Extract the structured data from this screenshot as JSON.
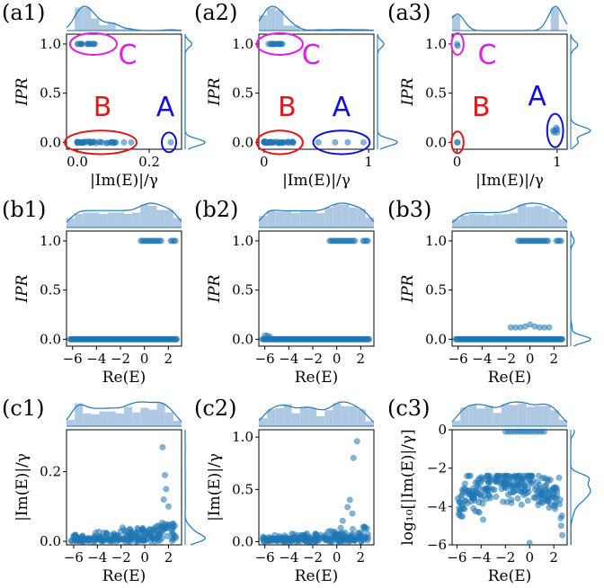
{
  "colors": {
    "points": "#1f77b4",
    "marginal_fill": "#9bbcdc",
    "cluster_A": "#1010d8",
    "cluster_B": "#e01818",
    "cluster_C": "#e020e0"
  },
  "chart_data": [
    {
      "type": "scatter",
      "panel_label": "(a1)",
      "xlabel": "|Im(E)|/γ",
      "ylabel": "IPR",
      "xlim": [
        -0.03,
        0.29
      ],
      "ylim": [
        -0.07,
        1.1
      ],
      "xticks": [
        0.0,
        0.2
      ],
      "xtick_labels": [
        "0.0",
        "0.2"
      ],
      "yticks": [
        0.0,
        0.5,
        1.0
      ],
      "ytick_labels": [
        "0.0",
        "0.5",
        "1.0"
      ],
      "marginal_top": true,
      "marginal_right": true,
      "points": {
        "cluster_low_x_range": [
          0.0,
          0.12
        ],
        "cluster_low_y": 0.0,
        "cluster_high_x_range": [
          0.0,
          0.05
        ],
        "cluster_high_y": 1.0,
        "outliers": [
          [
            0.13,
            0.0
          ],
          [
            0.15,
            0.0
          ],
          [
            0.26,
            0.0
          ]
        ]
      },
      "annotations": [
        {
          "text": "C",
          "color": "#e020e0",
          "ellipse_center": [
            0.045,
            1.0
          ],
          "ellipse_radii": [
            0.065,
            0.11
          ],
          "label_at": [
            0.14,
            0.8
          ]
        },
        {
          "text": "B",
          "color": "#e01818",
          "ellipse_center": [
            0.065,
            0.0
          ],
          "ellipse_radii": [
            0.1,
            0.12
          ],
          "label_at": [
            0.07,
            0.27
          ]
        },
        {
          "text": "A",
          "color": "#1010d8",
          "ellipse_center": [
            0.255,
            0.0
          ],
          "ellipse_radii": [
            0.02,
            0.1
          ],
          "label_at": [
            0.245,
            0.27
          ]
        }
      ]
    },
    {
      "type": "scatter",
      "panel_label": "(a2)",
      "xlabel": "|Im(E)|/γ",
      "ylabel": "IPR",
      "xlim": [
        -0.05,
        1.05
      ],
      "ylim": [
        -0.07,
        1.1
      ],
      "xticks": [
        0,
        1
      ],
      "xtick_labels": [
        "0",
        "1"
      ],
      "yticks": [
        0.0,
        0.5,
        1.0
      ],
      "ytick_labels": [
        "0.0",
        "0.5",
        "1.0"
      ],
      "marginal_top": true,
      "marginal_right": true,
      "points": {
        "cluster_low_x_range": [
          0.0,
          0.28
        ],
        "cluster_low_y": 0.0,
        "cluster_high_x_range": [
          0.0,
          0.18
        ],
        "cluster_high_y": 1.0,
        "outliers": [
          [
            0.52,
            0.0
          ],
          [
            0.68,
            0.0
          ],
          [
            0.8,
            0.0
          ],
          [
            0.95,
            0.0
          ]
        ]
      },
      "annotations": [
        {
          "text": "C",
          "color": "#e020e0",
          "ellipse_center": [
            0.15,
            1.0
          ],
          "ellipse_radii": [
            0.22,
            0.11
          ],
          "label_at": [
            0.45,
            0.8
          ]
        },
        {
          "text": "B",
          "color": "#e01818",
          "ellipse_center": [
            0.15,
            0.0
          ],
          "ellipse_radii": [
            0.22,
            0.12
          ],
          "label_at": [
            0.22,
            0.27
          ]
        },
        {
          "text": "A",
          "color": "#1010d8",
          "ellipse_center": [
            0.74,
            0.0
          ],
          "ellipse_radii": [
            0.27,
            0.12
          ],
          "label_at": [
            0.74,
            0.27
          ]
        }
      ]
    },
    {
      "type": "scatter",
      "panel_label": "(a3)",
      "xlabel": "|Im(E)|/γ",
      "ylabel": "IPR",
      "xlim": [
        -0.05,
        1.1
      ],
      "ylim": [
        -0.07,
        1.1
      ],
      "xticks": [
        0,
        1
      ],
      "xtick_labels": [
        "0",
        "1"
      ],
      "yticks": [
        0.0,
        0.5,
        1.0
      ],
      "ytick_labels": [
        "0.0",
        "0.5",
        "1.0"
      ],
      "marginal_top": true,
      "marginal_right": true,
      "points": {
        "cluster_A": [
          [
            0.97,
            0.1
          ],
          [
            0.98,
            0.12
          ],
          [
            0.99,
            0.15
          ],
          [
            1.0,
            0.1
          ],
          [
            1.0,
            0.13
          ],
          [
            0.96,
            0.12
          ]
        ],
        "cluster_B": [
          [
            0.0,
            0.0
          ],
          [
            0.005,
            0.0
          ]
        ],
        "cluster_C": [
          [
            0.0,
            1.0
          ],
          [
            0.005,
            0.98
          ]
        ]
      },
      "annotations": [
        {
          "text": "C",
          "color": "#e020e0",
          "ellipse_center": [
            0.005,
            1.0
          ],
          "ellipse_radii": [
            0.06,
            0.11
          ],
          "label_at": [
            0.3,
            0.8
          ]
        },
        {
          "text": "B",
          "color": "#e01818",
          "ellipse_center": [
            0.005,
            0.0
          ],
          "ellipse_radii": [
            0.06,
            0.11
          ],
          "label_at": [
            0.24,
            0.27
          ]
        },
        {
          "text": "A",
          "color": "#1010d8",
          "ellipse_center": [
            0.98,
            0.12
          ],
          "ellipse_radii": [
            0.08,
            0.17
          ],
          "label_at": [
            0.8,
            0.38
          ]
        }
      ]
    },
    {
      "type": "scatter",
      "panel_label": "(b1)",
      "xlabel": "Re(E)",
      "ylabel": "IPR",
      "xlim": [
        -6.5,
        3.1
      ],
      "ylim": [
        -0.07,
        1.1
      ],
      "xticks": [
        -6,
        -4,
        -2,
        0,
        2
      ],
      "xtick_labels": [
        "−6",
        "−4",
        "−2",
        "0",
        "2"
      ],
      "yticks": [
        0.0,
        0.5,
        1.0
      ],
      "ytick_labels": [
        "0.0",
        "0.5",
        "1.0"
      ],
      "marginal_top": true,
      "marginal_right": false,
      "points": {
        "band_y0_x_range": [
          -6.2,
          2.7
        ],
        "band_y1_x_ranges": [
          [
            -0.3,
            1.4
          ],
          [
            2.2,
            2.6
          ]
        ]
      }
    },
    {
      "type": "scatter",
      "panel_label": "(b2)",
      "xlabel": "Re(E)",
      "ylabel": "IPR",
      "xlim": [
        -6.5,
        3.1
      ],
      "ylim": [
        -0.07,
        1.1
      ],
      "xticks": [
        -6,
        -4,
        -2,
        0,
        2
      ],
      "xtick_labels": [
        "−6",
        "−4",
        "−2",
        "0",
        "2"
      ],
      "yticks": [
        0.0,
        0.5,
        1.0
      ],
      "ytick_labels": [
        "0.0",
        "0.5",
        "1.0"
      ],
      "marginal_top": true,
      "marginal_right": false,
      "points": {
        "band_y0_x_range": [
          -6.2,
          2.7
        ],
        "band_y1_x_ranges": [
          [
            -0.6,
            1.5
          ],
          [
            2.2,
            2.6
          ]
        ],
        "extra": [
          [
            -6.0,
            0.04
          ],
          [
            -5.8,
            0.035
          ],
          [
            -5.6,
            0.03
          ]
        ]
      }
    },
    {
      "type": "scatter",
      "panel_label": "(b3)",
      "xlabel": "Re(E)",
      "ylabel": "IPR",
      "xlim": [
        -6.5,
        3.1
      ],
      "ylim": [
        -0.07,
        1.1
      ],
      "xticks": [
        -6,
        -4,
        -2,
        0,
        2
      ],
      "xtick_labels": [
        "−6",
        "−4",
        "−2",
        "0",
        "2"
      ],
      "yticks": [
        0.0,
        0.5,
        1.0
      ],
      "ytick_labels": [
        "0.0",
        "0.5",
        "1.0"
      ],
      "marginal_top": true,
      "marginal_right": true,
      "points": {
        "band_y0_x_range": [
          -6.2,
          2.7
        ],
        "band_y1_x_ranges": [
          [
            -1.0,
            1.5
          ],
          [
            2.2,
            2.6
          ]
        ],
        "mid": [
          [
            -1.6,
            0.12
          ],
          [
            -1.2,
            0.12
          ],
          [
            -0.8,
            0.12
          ],
          [
            -0.4,
            0.13
          ],
          [
            0.0,
            0.15
          ],
          [
            0.4,
            0.13
          ],
          [
            0.8,
            0.12
          ],
          [
            1.2,
            0.12
          ],
          [
            1.6,
            0.12
          ]
        ]
      }
    },
    {
      "type": "scatter",
      "panel_label": "(c1)",
      "xlabel": "Re(E)",
      "ylabel": "|Im(E)|/γ",
      "xlim": [
        -6.6,
        3.1
      ],
      "ylim": [
        -0.01,
        0.32
      ],
      "xticks": [
        -6,
        -4,
        -2,
        0,
        2
      ],
      "xtick_labels": [
        "−6",
        "−4",
        "−2",
        "0",
        "2"
      ],
      "yticks": [
        0.0,
        0.2
      ],
      "ytick_labels": [
        "0.0",
        "0.2"
      ],
      "marginal_top": true,
      "marginal_right": true,
      "points": {
        "cloud_x_range": [
          -6.2,
          2.7
        ],
        "cloud_y_peak": 0.05,
        "outliers": [
          [
            1.5,
            0.27
          ],
          [
            1.7,
            0.19
          ],
          [
            1.8,
            0.15
          ],
          [
            1.6,
            0.12
          ],
          [
            2.0,
            0.1
          ]
        ]
      }
    },
    {
      "type": "scatter",
      "panel_label": "(c2)",
      "xlabel": "Re(E)",
      "ylabel": "|Im(E)|/γ",
      "xlim": [
        -6.5,
        3.1
      ],
      "ylim": [
        -0.03,
        1.07
      ],
      "xticks": [
        -6,
        -4,
        -2,
        0,
        2
      ],
      "xtick_labels": [
        "−6",
        "−4",
        "−2",
        "0",
        "2"
      ],
      "yticks": [
        0.0,
        0.5,
        1.0
      ],
      "ytick_labels": [
        "0.0",
        "0.5",
        "1.0"
      ],
      "marginal_top": true,
      "marginal_right": false,
      "points": {
        "cloud_x_range": [
          -6.2,
          2.7
        ],
        "cloud_y_peak": 0.12,
        "outliers": [
          [
            1.7,
            0.96
          ],
          [
            1.4,
            0.8
          ],
          [
            1.1,
            0.4
          ],
          [
            0.9,
            0.33
          ],
          [
            1.3,
            0.27
          ],
          [
            0.5,
            0.2
          ]
        ]
      }
    },
    {
      "type": "scatter",
      "panel_label": "(c3)",
      "xlabel": "Re(E)",
      "ylabel": "log₁₀[|Im(E)|/γ]",
      "xlim": [
        -6.4,
        3.1
      ],
      "ylim": [
        -6.0,
        0.0
      ],
      "xticks": [
        -6,
        -4,
        -2,
        0,
        2
      ],
      "xtick_labels": [
        "−6",
        "−4",
        "−2",
        "0",
        "2"
      ],
      "yticks": [
        -6,
        -4,
        -2,
        0
      ],
      "ytick_labels": [
        "−6",
        "−4",
        "−2",
        "0"
      ],
      "marginal_top": true,
      "marginal_right": true,
      "points": {
        "arc_x_range": [
          -6.0,
          2.7
        ],
        "arc_center": -1.5,
        "arc_top": -2.8,
        "arc_spread": 0.5,
        "top_row_x_range": [
          -2.0,
          1.2
        ],
        "top_row_y": -0.1,
        "outliers": [
          [
            0.0,
            -5.9
          ],
          [
            2.6,
            -5.0
          ],
          [
            2.7,
            -5.5
          ]
        ]
      }
    }
  ]
}
